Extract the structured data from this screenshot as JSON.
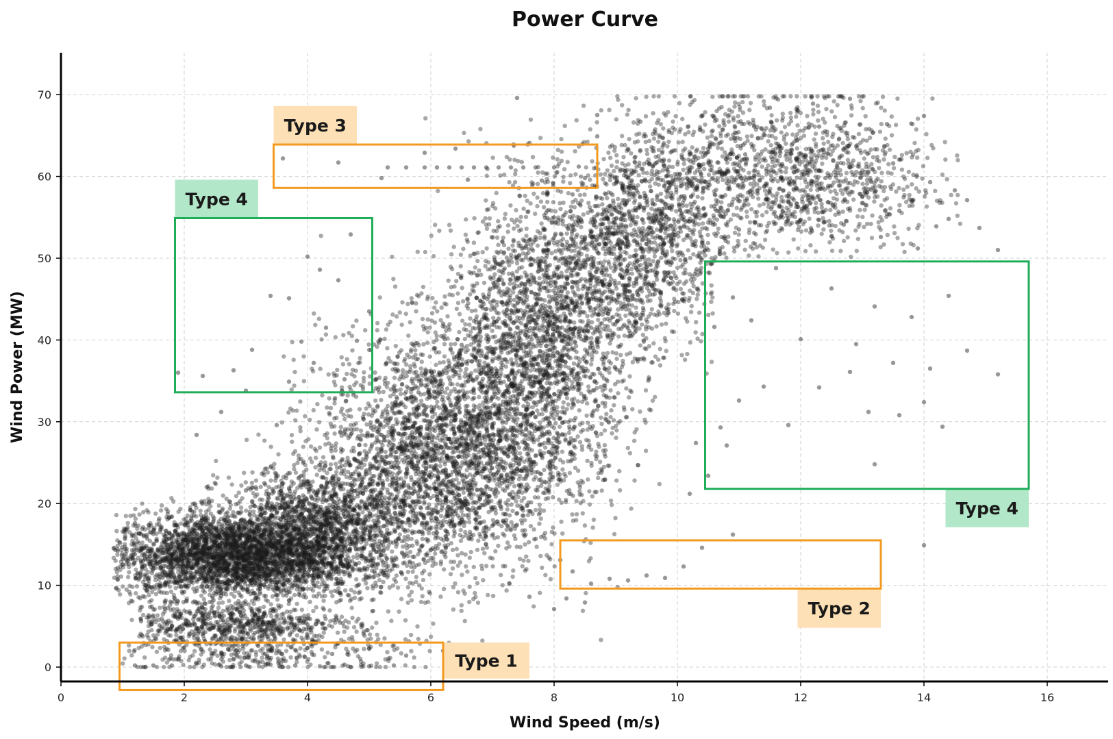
{
  "chart_data": {
    "type": "scatter",
    "title": "Power Curve",
    "xlabel": "Wind Speed (m/s)",
    "ylabel": "Wind Power (MW)",
    "xlim": [
      0,
      17
    ],
    "ylim": [
      -2,
      75
    ],
    "xticks": [
      0,
      2,
      4,
      6,
      8,
      10,
      12,
      14,
      16
    ],
    "yticks": [
      0,
      10,
      20,
      30,
      40,
      50,
      60,
      70
    ],
    "grid": true,
    "point_color": "#1a1a1a",
    "points": [
      [
        1.0,
        13.2
      ],
      [
        1.1,
        12.6
      ],
      [
        1.2,
        13.8
      ],
      [
        1.3,
        12.9
      ],
      [
        1.4,
        13.5
      ],
      [
        1.5,
        12.4
      ],
      [
        1.6,
        14.1
      ],
      [
        1.7,
        13.0
      ],
      [
        1.8,
        12.2
      ],
      [
        1.9,
        14.6
      ],
      [
        2.0,
        13.4
      ],
      [
        2.1,
        12.1
      ],
      [
        2.2,
        15.0
      ],
      [
        2.3,
        13.7
      ],
      [
        2.4,
        11.8
      ],
      [
        2.5,
        14.9
      ],
      [
        2.6,
        13.1
      ],
      [
        2.7,
        15.6
      ],
      [
        2.8,
        12.5
      ],
      [
        2.9,
        14.2
      ],
      [
        3.0,
        16.1
      ],
      [
        3.1,
        13.3
      ],
      [
        3.2,
        15.4
      ],
      [
        3.3,
        12.8
      ],
      [
        3.4,
        16.7
      ],
      [
        3.5,
        14.4
      ],
      [
        3.6,
        17.2
      ],
      [
        3.7,
        13.9
      ],
      [
        3.8,
        15.8
      ],
      [
        3.9,
        18.0
      ],
      [
        4.0,
        14.7
      ],
      [
        4.1,
        16.9
      ],
      [
        4.2,
        13.6
      ],
      [
        4.3,
        18.6
      ],
      [
        4.4,
        15.3
      ],
      [
        4.5,
        19.4
      ],
      [
        4.6,
        16.2
      ],
      [
        4.7,
        20.3
      ],
      [
        4.8,
        17.5
      ],
      [
        4.9,
        21.2
      ],
      [
        1.2,
        17.6
      ],
      [
        1.5,
        16.8
      ],
      [
        1.8,
        18.4
      ],
      [
        2.1,
        19.2
      ],
      [
        2.4,
        20.1
      ],
      [
        2.7,
        18.9
      ],
      [
        3.0,
        21.6
      ],
      [
        3.3,
        22.5
      ],
      [
        3.6,
        20.7
      ],
      [
        3.9,
        23.4
      ],
      [
        1.4,
        9.8
      ],
      [
        1.7,
        10.4
      ],
      [
        2.0,
        9.2
      ],
      [
        2.3,
        10.9
      ],
      [
        2.6,
        8.7
      ],
      [
        2.9,
        10.1
      ],
      [
        3.2,
        9.5
      ],
      [
        3.5,
        11.2
      ],
      [
        3.8,
        10.6
      ],
      [
        4.1,
        11.9
      ],
      [
        1.3,
        5.6
      ],
      [
        1.6,
        5.1
      ],
      [
        1.9,
        5.9
      ],
      [
        2.2,
        4.8
      ],
      [
        2.5,
        6.2
      ],
      [
        2.8,
        5.4
      ],
      [
        3.1,
        6.8
      ],
      [
        3.4,
        4.5
      ],
      [
        3.7,
        6.0
      ],
      [
        4.0,
        5.2
      ],
      [
        1.2,
        0.2
      ],
      [
        1.5,
        0.2
      ],
      [
        1.8,
        0.2
      ],
      [
        2.2,
        0.4
      ],
      [
        2.6,
        0.1
      ],
      [
        3.0,
        0.2
      ],
      [
        3.4,
        0.3
      ],
      [
        3.8,
        0.2
      ],
      [
        4.2,
        0.1
      ],
      [
        4.6,
        0.3
      ],
      [
        5.0,
        0.1
      ],
      [
        5.4,
        0.2
      ],
      [
        2.0,
        2.4
      ],
      [
        2.6,
        1.8
      ],
      [
        3.2,
        2.6
      ],
      [
        3.8,
        2.1
      ],
      [
        4.4,
        1.6
      ],
      [
        5.0,
        2.3
      ],
      [
        5.6,
        1.4
      ],
      [
        6.2,
        2.0
      ],
      [
        5.0,
        22.4
      ],
      [
        5.2,
        19.8
      ],
      [
        5.4,
        24.6
      ],
      [
        5.6,
        21.5
      ],
      [
        5.8,
        26.8
      ],
      [
        6.0,
        23.2
      ],
      [
        6.2,
        28.5
      ],
      [
        6.4,
        25.1
      ],
      [
        6.6,
        30.4
      ],
      [
        6.8,
        27.3
      ],
      [
        5.1,
        17.2
      ],
      [
        5.3,
        15.6
      ],
      [
        5.5,
        18.9
      ],
      [
        5.7,
        16.4
      ],
      [
        5.9,
        20.8
      ],
      [
        6.1,
        18.1
      ],
      [
        6.3,
        22.7
      ],
      [
        6.5,
        20.2
      ],
      [
        6.7,
        24.9
      ],
      [
        6.9,
        22.1
      ],
      [
        5.2,
        28.4
      ],
      [
        5.5,
        31.2
      ],
      [
        5.8,
        33.6
      ],
      [
        6.1,
        30.1
      ],
      [
        6.4,
        35.8
      ],
      [
        6.7,
        32.9
      ],
      [
        7.0,
        37.4
      ],
      [
        7.3,
        34.6
      ],
      [
        7.6,
        39.5
      ],
      [
        7.9,
        36.8
      ],
      [
        7.0,
        29.4
      ],
      [
        7.2,
        26.1
      ],
      [
        7.4,
        32.5
      ],
      [
        7.6,
        28.7
      ],
      [
        7.8,
        35.1
      ],
      [
        8.0,
        31.6
      ],
      [
        8.2,
        38.2
      ],
      [
        8.4,
        34.4
      ],
      [
        8.6,
        41.5
      ],
      [
        8.8,
        37.9
      ],
      [
        7.1,
        42.6
      ],
      [
        7.4,
        45.3
      ],
      [
        7.7,
        43.1
      ],
      [
        8.0,
        47.8
      ],
      [
        8.3,
        44.6
      ],
      [
        8.6,
        49.2
      ],
      [
        8.9,
        46.7
      ],
      [
        9.2,
        51.4
      ],
      [
        9.5,
        48.9
      ],
      [
        9.8,
        53.6
      ],
      [
        6.2,
        42.0
      ],
      [
        6.5,
        39.4
      ],
      [
        6.8,
        44.8
      ],
      [
        7.1,
        47.3
      ],
      [
        7.4,
        50.1
      ],
      [
        7.7,
        52.6
      ],
      [
        8.0,
        55.0
      ],
      [
        8.3,
        57.8
      ],
      [
        8.6,
        53.2
      ],
      [
        8.9,
        56.4
      ],
      [
        9.0,
        55.9
      ],
      [
        9.3,
        58.6
      ],
      [
        9.6,
        61.2
      ],
      [
        9.9,
        57.4
      ],
      [
        10.2,
        60.8
      ],
      [
        10.5,
        63.4
      ],
      [
        10.8,
        59.2
      ],
      [
        11.1,
        62.7
      ],
      [
        11.4,
        65.1
      ],
      [
        11.7,
        61.5
      ],
      [
        9.2,
        49.1
      ],
      [
        9.5,
        52.8
      ],
      [
        9.8,
        50.4
      ],
      [
        10.1,
        54.7
      ],
      [
        10.4,
        51.9
      ],
      [
        10.7,
        56.2
      ],
      [
        11.0,
        53.5
      ],
      [
        11.3,
        57.9
      ],
      [
        11.6,
        55.1
      ],
      [
        11.9,
        59.4
      ],
      [
        12.0,
        62.8
      ],
      [
        12.3,
        66.1
      ],
      [
        12.6,
        60.4
      ],
      [
        12.9,
        63.7
      ],
      [
        13.2,
        58.2
      ],
      [
        13.5,
        61.6
      ],
      [
        13.8,
        56.9
      ],
      [
        14.1,
        59.3
      ],
      [
        14.4,
        54.8
      ],
      [
        14.7,
        57.1
      ],
      [
        12.1,
        56.4
      ],
      [
        12.4,
        59.8
      ],
      [
        12.7,
        54.1
      ],
      [
        13.0,
        57.5
      ],
      [
        13.3,
        52.6
      ],
      [
        13.6,
        55.8
      ],
      [
        13.9,
        51.2
      ],
      [
        14.2,
        53.9
      ],
      [
        10.6,
        67.2
      ],
      [
        11.5,
        68.4
      ],
      [
        12.2,
        68.9
      ],
      [
        12.8,
        69.5
      ],
      [
        13.4,
        66.4
      ],
      [
        9.4,
        66.7
      ],
      [
        8.7,
        67.5
      ],
      [
        7.4,
        69.6
      ],
      [
        14.0,
        67.4
      ],
      [
        14.5,
        58.3
      ],
      [
        14.9,
        53.7
      ],
      [
        15.2,
        51.0
      ],
      [
        3.6,
        62.2
      ],
      [
        4.5,
        61.7
      ],
      [
        5.3,
        61.1
      ],
      [
        5.6,
        61.1
      ],
      [
        5.9,
        61.1
      ],
      [
        6.1,
        61.1
      ],
      [
        6.3,
        61.1
      ],
      [
        6.5,
        61.1
      ],
      [
        6.7,
        61.1
      ],
      [
        6.9,
        61.1
      ],
      [
        7.1,
        61.1
      ],
      [
        7.3,
        61.1
      ],
      [
        7.5,
        61.1
      ],
      [
        7.7,
        61.1
      ],
      [
        8.0,
        61.1
      ],
      [
        8.4,
        61.2
      ],
      [
        5.2,
        59.8
      ],
      [
        6.6,
        59.6
      ],
      [
        7.8,
        59.5
      ],
      [
        8.5,
        59.8
      ],
      [
        10.6,
        49.7
      ],
      [
        10.9,
        45.2
      ],
      [
        11.2,
        42.4
      ],
      [
        11.6,
        48.8
      ],
      [
        12.0,
        40.1
      ],
      [
        12.5,
        46.3
      ],
      [
        12.9,
        39.5
      ],
      [
        13.2,
        44.1
      ],
      [
        13.5,
        37.2
      ],
      [
        13.8,
        42.8
      ],
      [
        14.1,
        36.5
      ],
      [
        14.4,
        45.4
      ],
      [
        14.7,
        38.7
      ],
      [
        15.2,
        35.8
      ],
      [
        12.3,
        34.2
      ],
      [
        12.8,
        36.1
      ],
      [
        13.1,
        31.2
      ],
      [
        13.6,
        30.8
      ],
      [
        14.0,
        32.4
      ],
      [
        11.4,
        34.3
      ],
      [
        10.5,
        23.4
      ],
      [
        10.7,
        29.3
      ],
      [
        11.0,
        32.6
      ],
      [
        10.6,
        41.6
      ],
      [
        11.8,
        29.6
      ],
      [
        13.2,
        24.8
      ],
      [
        14.3,
        29.4
      ],
      [
        10.2,
        21.2
      ],
      [
        10.3,
        27.4
      ],
      [
        10.8,
        27.1
      ],
      [
        8.1,
        13.1
      ],
      [
        8.3,
        11.7
      ],
      [
        8.6,
        10.2
      ],
      [
        8.9,
        10.8
      ],
      [
        9.2,
        10.6
      ],
      [
        9.5,
        11.2
      ],
      [
        9.8,
        10.9
      ],
      [
        10.1,
        12.3
      ],
      [
        10.4,
        14.6
      ],
      [
        10.9,
        16.2
      ],
      [
        8.2,
        8.4
      ],
      [
        8.5,
        7.9
      ],
      [
        7.6,
        8.6
      ],
      [
        8.0,
        7.1
      ],
      [
        14.0,
        14.9
      ],
      [
        1.9,
        36.0
      ],
      [
        2.3,
        35.6
      ],
      [
        2.8,
        36.3
      ],
      [
        3.1,
        38.8
      ],
      [
        3.4,
        45.4
      ],
      [
        3.7,
        34.9
      ],
      [
        3.9,
        39.8
      ],
      [
        4.1,
        37.2
      ],
      [
        4.3,
        41.5
      ],
      [
        4.6,
        35.2
      ],
      [
        4.8,
        39.9
      ],
      [
        5.0,
        43.5
      ],
      [
        4.0,
        50.2
      ],
      [
        4.2,
        48.6
      ],
      [
        4.7,
        52.9
      ],
      [
        2.6,
        31.2
      ],
      [
        3.0,
        33.8
      ],
      [
        3.5,
        29.6
      ],
      [
        4.5,
        47.3
      ],
      [
        3.7,
        45.1
      ],
      [
        2.2,
        28.4
      ],
      [
        5.9,
        62.9
      ],
      [
        6.4,
        63.4
      ],
      [
        7.6,
        64.1
      ],
      [
        8.7,
        64.9
      ]
    ],
    "annotations": [
      {
        "label": "Type 1",
        "kind": "Type 1",
        "x0": 0.95,
        "x1": 6.2,
        "y0": -2.8,
        "y1": 3.0,
        "label_x0": 6.2,
        "label_x1": 7.6,
        "label_y0": -1.4,
        "label_y1": 3.0
      },
      {
        "label": "Type 2",
        "kind": "Type 2",
        "x0": 8.1,
        "x1": 13.3,
        "y0": 9.6,
        "y1": 15.5,
        "label_x0": 11.95,
        "label_x1": 13.3,
        "label_y0": 4.8,
        "label_y1": 9.6
      },
      {
        "label": "Type 3",
        "kind": "Type 3",
        "x0": 3.45,
        "x1": 8.7,
        "y0": 58.6,
        "y1": 63.9,
        "label_x0": 3.45,
        "label_x1": 4.8,
        "label_y0": 63.9,
        "label_y1": 68.6
      },
      {
        "label": "Type 4",
        "kind": "Type 4",
        "x0": 1.85,
        "x1": 5.05,
        "y0": 33.6,
        "y1": 54.9,
        "label_x0": 1.85,
        "label_x1": 3.2,
        "label_y0": 54.9,
        "label_y1": 59.6
      },
      {
        "label": "Type 4",
        "kind": "Type 4",
        "x0": 10.45,
        "x1": 15.7,
        "y0": 21.8,
        "y1": 49.6,
        "label_x0": 14.35,
        "label_x1": 15.7,
        "label_y0": 17.1,
        "label_y1": 21.8
      }
    ],
    "colors": {
      "Type 1": {
        "stroke": "#f39a1e",
        "fill": "#fde0b6"
      },
      "Type 2": {
        "stroke": "#f39a1e",
        "fill": "#fde0b6"
      },
      "Type 3": {
        "stroke": "#f39a1e",
        "fill": "#fde0b6"
      },
      "Type 4": {
        "stroke": "#1fad5a",
        "fill": "#b2e8c9"
      }
    }
  }
}
